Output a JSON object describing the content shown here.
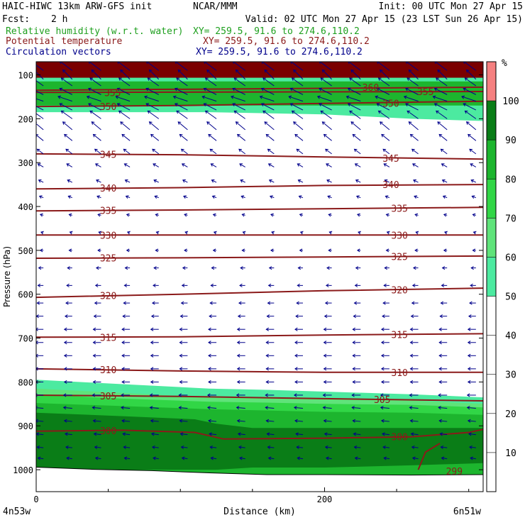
{
  "header": {
    "title": "HAIC-HIWC 13km ARW-GFS init",
    "org": "NCAR/MMM",
    "init": "Init: 00 UTC Mon 27 Apr 15",
    "fcst_label": "Fcst:",
    "fcst_value": "2 h",
    "valid": "Valid: 02 UTC Mon 27 Apr 15 (23 LST Sun 26 Apr 15)",
    "fields": [
      {
        "name": "Relative humidity (w.r.t. water)",
        "xy": "XY= 259.5, 91.6 to 274.6,110.2",
        "color": "#1fa01f"
      },
      {
        "name": "Potential temperature",
        "xy": "XY= 259.5, 91.6 to 274.6,110.2",
        "color": "#8b1a1a"
      },
      {
        "name": "Circulation vectors",
        "xy": "XY= 259.5, 91.6 to 274.6,110.2",
        "color": "#00008b"
      }
    ]
  },
  "chart_data": {
    "type": "heatmap",
    "xlabel": "Distance (km)",
    "ylabel": "Pressure (hPa)",
    "xlim": [
      0,
      310
    ],
    "ylim": [
      1050,
      70
    ],
    "x_ticks": [
      0,
      200
    ],
    "y_ticks": [
      100,
      200,
      300,
      400,
      500,
      600,
      700,
      800,
      900,
      1000
    ],
    "x_endpoints": {
      "left": "4n53w",
      "right": "6n51w"
    },
    "colorbar": {
      "unit": "%",
      "levels": [
        10,
        20,
        30,
        40,
        50,
        60,
        70,
        80,
        90,
        100
      ],
      "bins": [
        {
          "from": 50,
          "to": 60,
          "color": "#4ceaa0"
        },
        {
          "from": 60,
          "to": 70,
          "color": "#5fe37a"
        },
        {
          "from": 70,
          "to": 80,
          "color": "#31d646"
        },
        {
          "from": 80,
          "to": 90,
          "color": "#1db52e"
        },
        {
          "from": 90,
          "to": 100,
          "color": "#0a7d17"
        },
        {
          "from": 100,
          "to": 110,
          "color": "#f58080"
        }
      ]
    },
    "rh_layers": [
      {
        "range": "50-60",
        "x": [
          0,
          60,
          120,
          200,
          260,
          310
        ],
        "top": [
          100,
          100,
          100,
          100,
          100,
          100
        ],
        "bottom": [
          185,
          185,
          185,
          190,
          200,
          205
        ]
      },
      {
        "range": "80-90",
        "x": [
          0,
          310
        ],
        "top": [
          115,
          115
        ],
        "bottom": [
          170,
          170
        ]
      },
      {
        "range": "50-60",
        "x": [
          0,
          60,
          120,
          160,
          200,
          260,
          310
        ],
        "top": [
          795,
          805,
          815,
          818,
          822,
          828,
          835
        ],
        "bottom": [
          1050,
          1050,
          1050,
          1050,
          1050,
          1050,
          1050
        ]
      },
      {
        "range": "60-70",
        "x": [
          0,
          60,
          120,
          160,
          200,
          260,
          310
        ],
        "top": [
          815,
          825,
          835,
          835,
          838,
          842,
          850
        ],
        "bottom": [
          1050,
          1050,
          1050,
          1050,
          1050,
          1050,
          1050
        ]
      },
      {
        "range": "70-80",
        "x": [
          0,
          60,
          120,
          160,
          200,
          260,
          310
        ],
        "top": [
          828,
          838,
          845,
          847,
          850,
          852,
          858
        ],
        "bottom": [
          1050,
          1050,
          1050,
          1050,
          1050,
          1050,
          1050
        ]
      },
      {
        "range": "80-90",
        "x": [
          0,
          60,
          120,
          160,
          200,
          260,
          310
        ],
        "top": [
          848,
          855,
          862,
          865,
          868,
          870,
          875
        ],
        "bottom": [
          1050,
          1050,
          1050,
          1050,
          1050,
          1050,
          1050
        ]
      },
      {
        "range": "90-100",
        "x": [
          0,
          60,
          110,
          125,
          150,
          200,
          260,
          310
        ],
        "top": [
          870,
          878,
          885,
          895,
          905,
          905,
          905,
          905
        ],
        "bottom": [
          995,
          1000,
          1000,
          1000,
          995,
          995,
          990,
          985
        ]
      },
      {
        "range": "100-110",
        "x": [
          0,
          310
        ],
        "top": [
          70,
          70
        ],
        "bottom": [
          100,
          100
        ]
      }
    ],
    "theta_contours": [
      {
        "level": 360,
        "x": [
          0,
          310
        ],
        "p": [
          135,
          128
        ],
        "labels": [
          {
            "x": 232,
            "p": 128
          }
        ]
      },
      {
        "level": 355,
        "x": [
          0,
          310
        ],
        "p": [
          140,
          138
        ],
        "labels": [
          {
            "x": 53,
            "p": 140
          },
          {
            "x": 270,
            "p": 138
          }
        ]
      },
      {
        "level": 350,
        "x": [
          0,
          100,
          200,
          310
        ],
        "p": [
          172,
          170,
          165,
          160
        ],
        "labels": [
          {
            "x": 50,
            "p": 172
          },
          {
            "x": 246,
            "p": 165
          }
        ]
      },
      {
        "level": 345,
        "x": [
          0,
          100,
          200,
          310
        ],
        "p": [
          280,
          282,
          287,
          292
        ],
        "labels": [
          {
            "x": 50,
            "p": 281
          },
          {
            "x": 246,
            "p": 290
          }
        ]
      },
      {
        "level": 340,
        "x": [
          0,
          100,
          200,
          310
        ],
        "p": [
          360,
          357,
          352,
          350
        ],
        "labels": [
          {
            "x": 50,
            "p": 358
          },
          {
            "x": 246,
            "p": 350
          }
        ]
      },
      {
        "level": 335,
        "x": [
          0,
          100,
          200,
          310
        ],
        "p": [
          410,
          408,
          405,
          402
        ],
        "labels": [
          {
            "x": 50,
            "p": 409
          },
          {
            "x": 252,
            "p": 404
          }
        ]
      },
      {
        "level": 330,
        "x": [
          0,
          100,
          200,
          310
        ],
        "p": [
          465,
          465,
          465,
          465
        ],
        "labels": [
          {
            "x": 50,
            "p": 465
          },
          {
            "x": 252,
            "p": 465
          }
        ]
      },
      {
        "level": 325,
        "x": [
          0,
          100,
          200,
          310
        ],
        "p": [
          518,
          517,
          515,
          513
        ],
        "labels": [
          {
            "x": 50,
            "p": 517
          },
          {
            "x": 252,
            "p": 514
          }
        ]
      },
      {
        "level": 320,
        "x": [
          0,
          100,
          200,
          310
        ],
        "p": [
          607,
          600,
          592,
          586
        ],
        "labels": [
          {
            "x": 50,
            "p": 603
          },
          {
            "x": 252,
            "p": 590
          }
        ]
      },
      {
        "level": 315,
        "x": [
          0,
          100,
          200,
          310
        ],
        "p": [
          698,
          697,
          693,
          690
        ],
        "labels": [
          {
            "x": 50,
            "p": 698
          },
          {
            "x": 252,
            "p": 692
          }
        ]
      },
      {
        "level": 310,
        "x": [
          0,
          100,
          200,
          310
        ],
        "p": [
          770,
          775,
          778,
          778
        ],
        "labels": [
          {
            "x": 50,
            "p": 772
          },
          {
            "x": 252,
            "p": 778
          }
        ]
      },
      {
        "level": 305,
        "x": [
          0,
          100,
          200,
          310
        ],
        "p": [
          830,
          833,
          838,
          843
        ],
        "labels": [
          {
            "x": 50,
            "p": 832
          },
          {
            "x": 240,
            "p": 840
          }
        ]
      },
      {
        "level": 300,
        "x": [
          0,
          60,
          110,
          130,
          200,
          260,
          300,
          310
        ],
        "p": [
          912,
          910,
          915,
          930,
          928,
          925,
          915,
          908
        ],
        "labels": [
          {
            "x": 50,
            "p": 911
          },
          {
            "x": 252,
            "p": 925
          }
        ]
      },
      {
        "level": 299,
        "x": [
          265,
          270,
          280
        ],
        "p": [
          1000,
          960,
          940
        ],
        "labels": [
          {
            "x": 290,
            "p": 1003
          }
        ]
      }
    ],
    "terrain": {
      "x": [
        0,
        40,
        80,
        120,
        160,
        200,
        260,
        310
      ],
      "p": [
        995,
        1000,
        1003,
        1008,
        1012,
        1012,
        1013,
        1012
      ]
    },
    "vectors": {
      "x": [
        5,
        25,
        45,
        65,
        85,
        105,
        125,
        145,
        165,
        185,
        205,
        225,
        245,
        265,
        285,
        305
      ],
      "levels": [
        {
          "p": 90,
          "u": -0.8,
          "w": -0.6
        },
        {
          "p": 110,
          "u": -0.6,
          "w": -0.6
        },
        {
          "p": 125,
          "u": -0.7,
          "w": -0.5
        },
        {
          "p": 145,
          "u": -0.8,
          "w": -0.4
        },
        {
          "p": 160,
          "u": -0.9,
          "w": -0.3
        },
        {
          "p": 180,
          "u": -0.8,
          "w": -0.4
        },
        {
          "p": 200,
          "u": -0.7,
          "w": -0.5
        },
        {
          "p": 225,
          "u": -0.6,
          "w": -0.5
        },
        {
          "p": 250,
          "u": -0.5,
          "w": -0.4
        },
        {
          "p": 280,
          "u": -0.4,
          "w": -0.3
        },
        {
          "p": 310,
          "u": -0.35,
          "w": -0.2
        },
        {
          "p": 345,
          "u": -0.3,
          "w": -0.15
        },
        {
          "p": 380,
          "u": -0.25,
          "w": -0.1
        },
        {
          "p": 420,
          "u": -0.2,
          "w": -0.05
        },
        {
          "p": 460,
          "u": -0.15,
          "w": -0.05
        },
        {
          "p": 500,
          "u": -0.2,
          "w": 0
        },
        {
          "p": 540,
          "u": -0.3,
          "w": 0
        },
        {
          "p": 580,
          "u": -0.35,
          "w": 0
        },
        {
          "p": 620,
          "u": -0.4,
          "w": 0
        },
        {
          "p": 650,
          "u": -0.45,
          "w": 0
        },
        {
          "p": 680,
          "u": -0.5,
          "w": 0
        },
        {
          "p": 710,
          "u": -0.5,
          "w": 0
        },
        {
          "p": 740,
          "u": -0.5,
          "w": 0
        },
        {
          "p": 770,
          "u": -0.5,
          "w": 0
        },
        {
          "p": 800,
          "u": -0.5,
          "w": 0
        },
        {
          "p": 830,
          "u": -0.55,
          "w": 0
        },
        {
          "p": 860,
          "u": -0.55,
          "w": -0.05
        },
        {
          "p": 890,
          "u": -0.5,
          "w": -0.05
        },
        {
          "p": 920,
          "u": -0.45,
          "w": -0.05
        },
        {
          "p": 950,
          "u": -0.4,
          "w": -0.05
        },
        {
          "p": 975,
          "u": -0.35,
          "w": -0.05
        }
      ]
    }
  }
}
